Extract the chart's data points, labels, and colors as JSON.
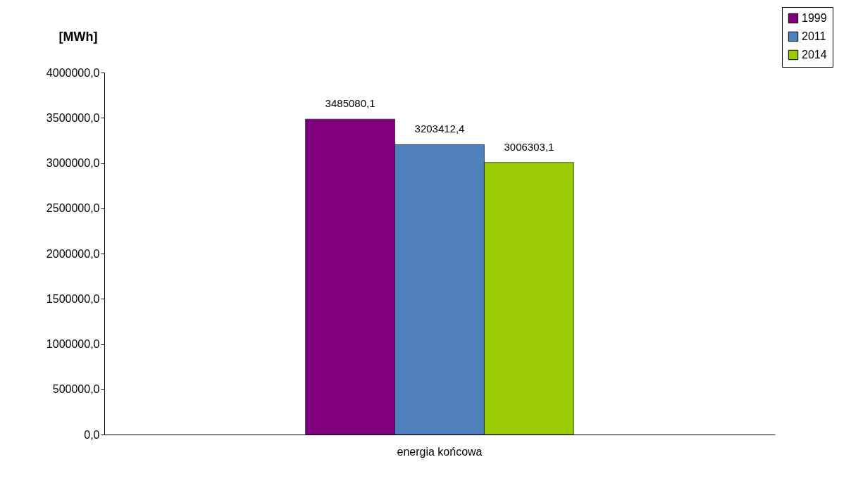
{
  "chart_data": {
    "type": "bar",
    "ylabel": "[MWh]",
    "categories": [
      "energia końcowa"
    ],
    "series": [
      {
        "name": "1999",
        "color": "#800080",
        "values": [
          3485080.1
        ],
        "value_labels": [
          "3485080,1"
        ]
      },
      {
        "name": "2011",
        "color": "#4f81bd",
        "values": [
          3203412.4
        ],
        "value_labels": [
          "3203412,4"
        ]
      },
      {
        "name": "2014",
        "color": "#99cc00",
        "values": [
          3006303.1
        ],
        "value_labels": [
          "3006303,1"
        ]
      }
    ],
    "ylim": [
      0,
      4000000
    ],
    "yticks": [
      {
        "value": 0,
        "label": "0,0"
      },
      {
        "value": 500000,
        "label": "500000,0"
      },
      {
        "value": 1000000,
        "label": "1000000,0"
      },
      {
        "value": 1500000,
        "label": "1500000,0"
      },
      {
        "value": 2000000,
        "label": "2000000,0"
      },
      {
        "value": 2500000,
        "label": "2500000,0"
      },
      {
        "value": 3000000,
        "label": "3000000,0"
      },
      {
        "value": 3500000,
        "label": "3500000,0"
      },
      {
        "value": 4000000,
        "label": "4000000,0"
      }
    ],
    "grid": false,
    "legend": "top right"
  }
}
